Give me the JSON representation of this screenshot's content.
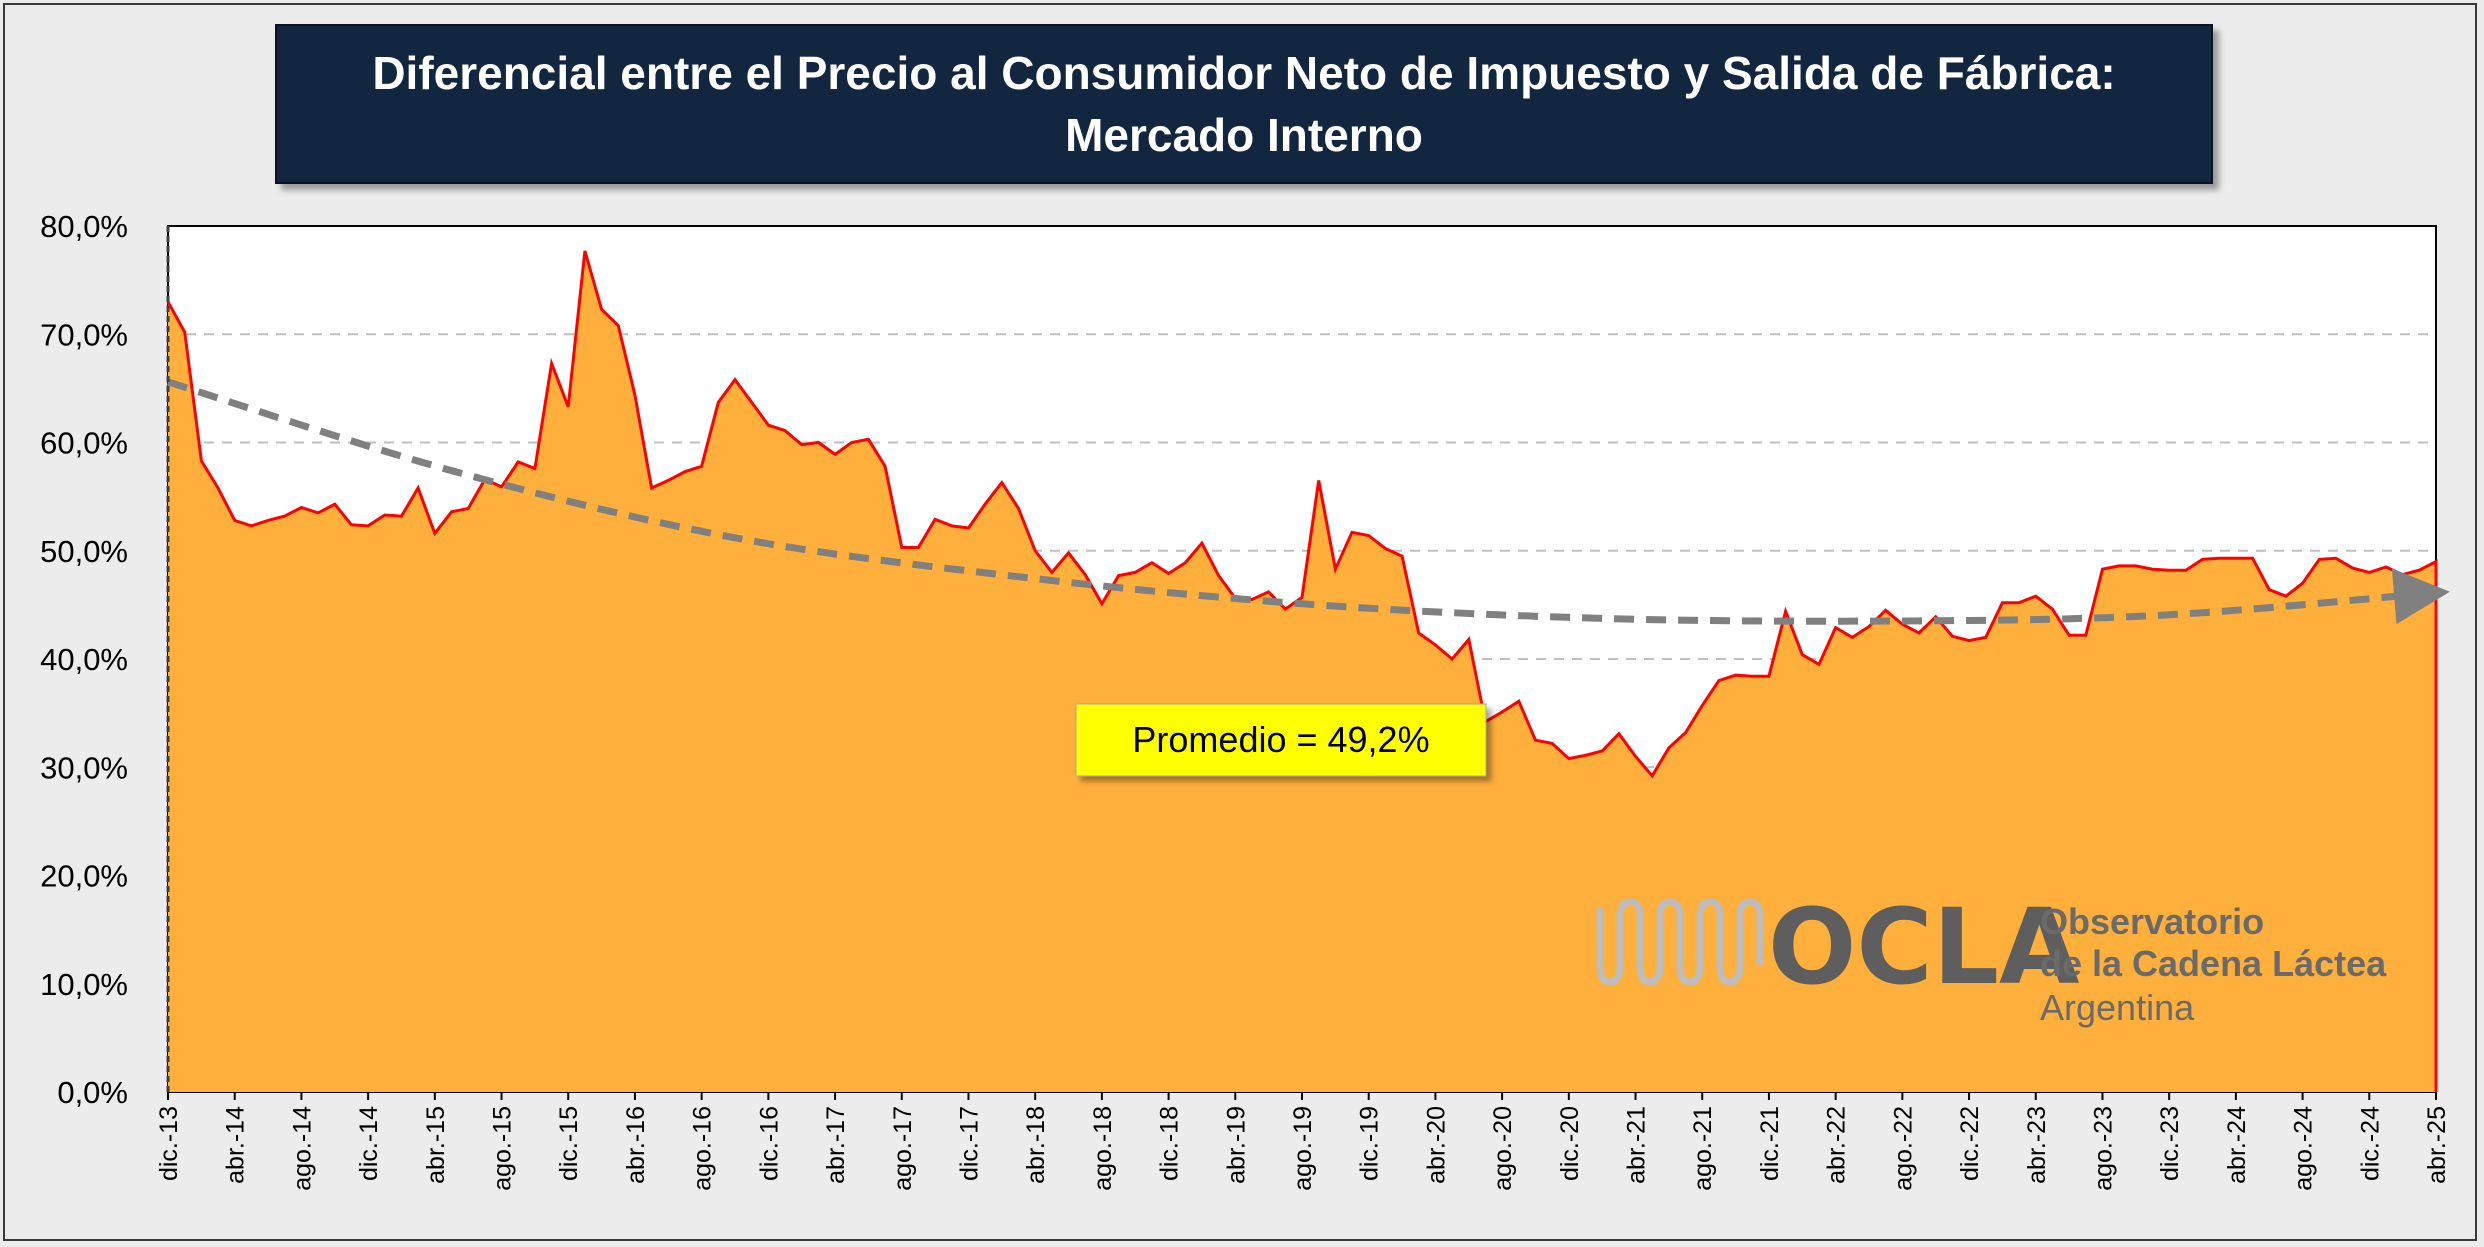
{
  "title": {
    "line1": "Diferencial entre el Precio al Consumidor Neto de Impuesto y Salida de Fábrica:",
    "line2": "Mercado Interno"
  },
  "annotation": {
    "label": "Promedio = 49,2%",
    "background": "#ffff00"
  },
  "logo": {
    "acronym": "OCLA",
    "line1": "Observatorio",
    "line2": "de la Cadena Láctea",
    "line3": "Argentina"
  },
  "colors": {
    "area_fill": "#ffaf3c",
    "line": "#ff0000",
    "trend": "#808080",
    "title_bg": "#13263f",
    "gridline": "#bfbfbf"
  },
  "chart_data": {
    "type": "area",
    "start_month": "dic.-13",
    "end_month": "abr.-25",
    "ylim": [
      0,
      80
    ],
    "yticks": [
      "0,0%",
      "10,0%",
      "20,0%",
      "30,0%",
      "40,0%",
      "50,0%",
      "60,0%",
      "70,0%",
      "80,0%"
    ],
    "x_tick_labels": [
      "dic.-13",
      "abr.-14",
      "ago.-14",
      "dic.-14",
      "abr.-15",
      "ago.-15",
      "dic.-15",
      "abr.-16",
      "ago.-16",
      "dic.-16",
      "abr.-17",
      "ago.-17",
      "dic.-17",
      "abr.-18",
      "ago.-18",
      "dic.-18",
      "abr.-19",
      "ago.-19",
      "dic.-19",
      "abr.-20",
      "ago.-20",
      "dic.-20",
      "abr.-21",
      "ago.-21",
      "dic.-21",
      "abr.-22",
      "ago.-22",
      "dic.-22",
      "abr.-23",
      "ago.-23",
      "dic.-23",
      "abr.-24",
      "ago.-24",
      "dic.-24",
      "abr.-25"
    ],
    "grid": true,
    "series": [
      {
        "values": [
          73,
          70.2,
          58.3,
          55.8,
          52.8,
          52.3,
          52.8,
          53.2,
          54,
          53.5,
          54.3,
          52.4,
          52.3,
          53.3,
          53.2,
          55.8,
          51.6,
          53.6,
          53.9,
          56.6,
          55.9,
          58.2,
          57.6,
          67.3,
          63.3,
          77.7,
          72.3,
          70.8,
          64.4,
          55.8,
          56.5,
          57.3,
          57.8,
          63.7,
          65.8,
          63.7,
          61.6,
          61.1,
          59.8,
          60,
          58.9,
          60,
          60.3,
          57.8,
          50.3,
          50.3,
          52.9,
          52.3,
          52.1,
          54.3,
          56.3,
          53.9,
          50,
          48,
          49.8,
          47.8,
          45.1,
          47.7,
          48,
          48.9,
          47.9,
          48.9,
          50.7,
          47.7,
          45.6,
          45.5,
          46.2,
          44.6,
          45.7,
          56.5,
          48.3,
          51.7,
          51.4,
          50.2,
          49.5,
          42.4,
          41.3,
          40,
          41.8,
          34.2,
          35.1,
          36.1,
          32.5,
          32.2,
          30.8,
          31.1,
          31.5,
          33.1,
          31,
          29.2,
          31.8,
          33.2,
          35.7,
          38,
          38.5,
          38.4,
          38.4,
          44.4,
          40.4,
          39.5,
          42.9,
          42,
          43,
          44.5,
          43.2,
          42.4,
          43.9,
          42.1,
          41.7,
          42,
          45.2,
          45.2,
          45.8,
          44.6,
          42.2,
          42.2,
          48.3,
          48.6,
          48.6,
          48.3,
          48.2,
          48.2,
          49.2,
          49.3,
          49.3,
          49.3,
          46.4,
          45.8,
          47,
          49.2,
          49.3,
          48.4,
          48,
          48.5,
          47.8,
          48.2,
          49
        ]
      }
    ],
    "trend": {
      "type": "polynomial",
      "values": [
        65.6,
        57.4,
        51.2,
        47.6,
        45.1,
        43.8,
        43.5,
        44,
        46
      ]
    },
    "average_percent": 49.2
  }
}
